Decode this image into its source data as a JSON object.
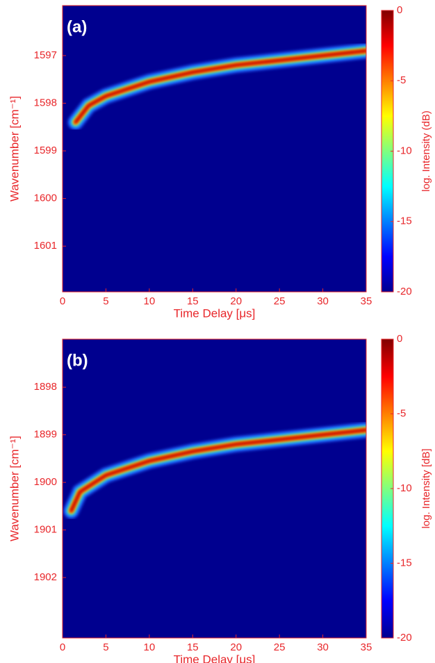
{
  "chart_data": [
    {
      "type": "heatmap",
      "panel_label": "(a)",
      "xlabel": "Time Delay [μs]",
      "ylabel": "Wavenumber [cm⁻¹]",
      "colorbar_label": "log. Intensity (dB)",
      "x": [
        1.5,
        3,
        5,
        10,
        15,
        20,
        25,
        30,
        35
      ],
      "values": [
        1598.4,
        1598.05,
        1597.85,
        1597.55,
        1597.35,
        1597.2,
        1597.1,
        1597.0,
        1596.9
      ],
      "xlim": [
        0,
        35
      ],
      "xticks": [
        0,
        5,
        10,
        15,
        20,
        25,
        30,
        35
      ],
      "ylim": [
        1601.96,
        1595.95
      ],
      "yticks": [
        1597,
        1598,
        1599,
        1600,
        1601
      ],
      "clim": [
        -20,
        0
      ],
      "cticks": [
        0,
        -5,
        -10,
        -15,
        -20
      ],
      "colormap": "jet",
      "background": "#00008f"
    },
    {
      "type": "heatmap",
      "panel_label": "(b)",
      "xlabel": "Time Delay [μs]",
      "ylabel": "Wavenumber [cm⁻¹]",
      "colorbar_label": "log. Intensity [dB]",
      "x": [
        1,
        2,
        5,
        10,
        15,
        20,
        25,
        30,
        35
      ],
      "values": [
        1900.6,
        1900.2,
        1899.85,
        1899.55,
        1899.35,
        1899.2,
        1899.1,
        1899.0,
        1898.9
      ],
      "xlim": [
        0,
        35
      ],
      "xticks": [
        0,
        5,
        10,
        15,
        20,
        25,
        30,
        35
      ],
      "ylim": [
        1903.27,
        1896.99
      ],
      "yticks": [
        1898,
        1899,
        1900,
        1901,
        1902
      ],
      "clim": [
        -20,
        0
      ],
      "cticks": [
        0,
        -5,
        -10,
        -15,
        -20
      ],
      "colormap": "jet",
      "background": "#00008f"
    }
  ]
}
